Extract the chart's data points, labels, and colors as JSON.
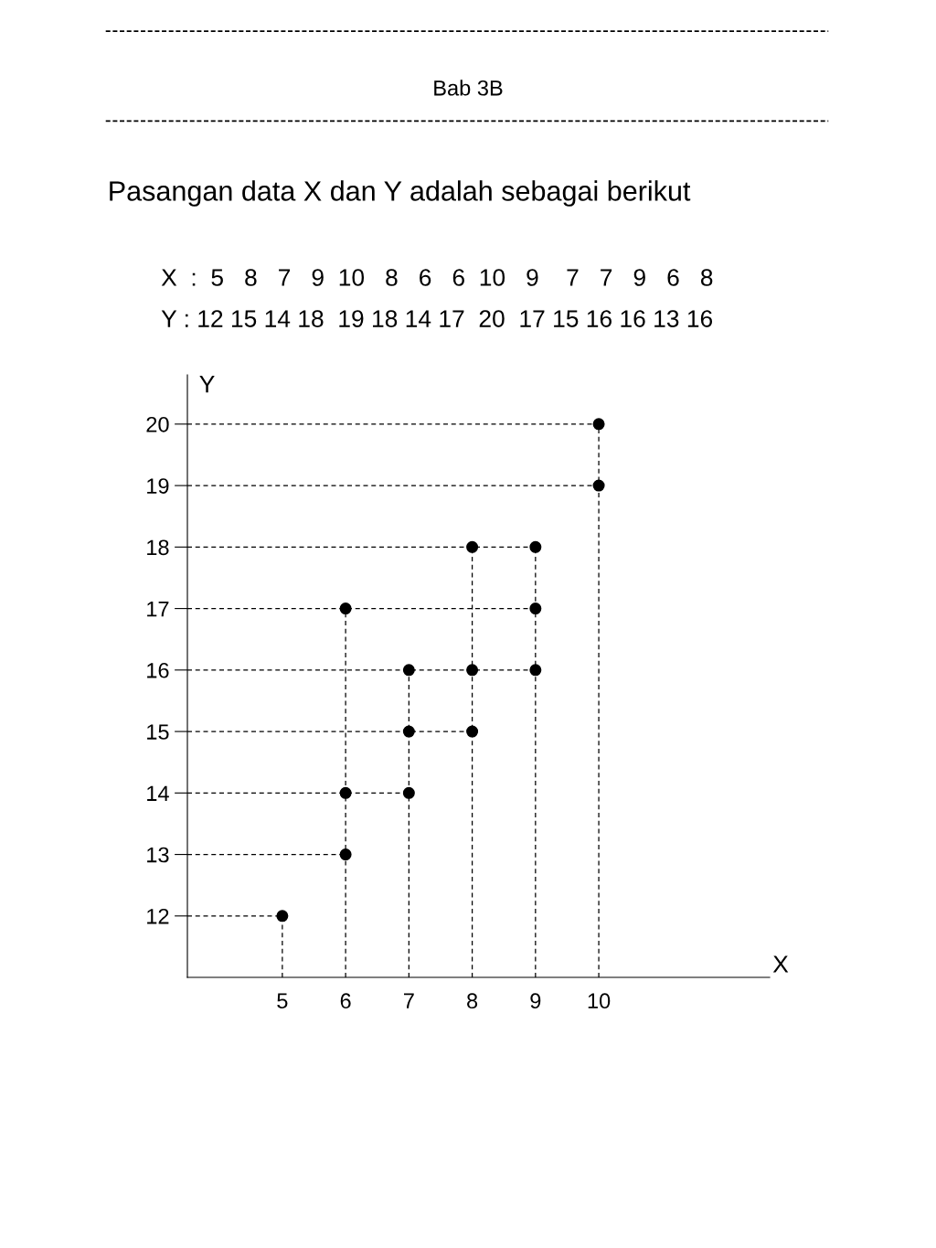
{
  "chart_data": {
    "type": "scatter",
    "title": "Pasangan data X dan Y adalah sebagai berikut",
    "subtitle": "Bab 3B",
    "annotations": [
      "X  :  5   8   7   9  10   8   6   6  10   9    7   7   9   6   8",
      "Y : 12 15 14 18  19 18 14 17  20  17 15 16 16 13 16"
    ],
    "xlabel": "X",
    "ylabel": "Y",
    "series": [
      {
        "color": "#000000",
        "x": [
          5,
          8,
          7,
          9,
          10,
          8,
          6,
          6,
          10,
          9,
          7,
          7,
          9,
          6,
          8
        ],
        "values": [
          12,
          15,
          14,
          18,
          19,
          18,
          14,
          17,
          20,
          17,
          15,
          16,
          16,
          13,
          16
        ]
      },
      {
        "type": "line",
        "line_style": "dashed",
        "color": "#000000",
        "marker": "none",
        "x": [
          3.5,
          5
        ],
        "values": [
          12,
          12
        ]
      },
      {
        "type": "line",
        "line_style": "dashed",
        "color": "#000000",
        "marker": "none",
        "x": [
          3.5,
          6
        ],
        "values": [
          13,
          13
        ]
      },
      {
        "type": "line",
        "line_style": "dashed",
        "color": "#000000",
        "marker": "none",
        "x": [
          3.5,
          7
        ],
        "values": [
          14,
          14
        ]
      },
      {
        "type": "line",
        "line_style": "dashed",
        "color": "#000000",
        "marker": "none",
        "x": [
          3.5,
          8
        ],
        "values": [
          15,
          15
        ]
      },
      {
        "type": "line",
        "line_style": "dashed",
        "color": "#000000",
        "marker": "none",
        "x": [
          3.5,
          9
        ],
        "values": [
          16,
          16
        ]
      },
      {
        "type": "line",
        "line_style": "dashed",
        "color": "#000000",
        "marker": "none",
        "x": [
          3.5,
          9
        ],
        "values": [
          17,
          17
        ]
      },
      {
        "type": "line",
        "line_style": "dashed",
        "color": "#000000",
        "marker": "none",
        "x": [
          3.5,
          9
        ],
        "values": [
          18,
          18
        ]
      },
      {
        "type": "line",
        "line_style": "dashed",
        "color": "#000000",
        "marker": "none",
        "x": [
          3.5,
          10
        ],
        "values": [
          19,
          19
        ]
      },
      {
        "type": "line",
        "line_style": "dashed",
        "color": "#000000",
        "marker": "none",
        "x": [
          3.5,
          10
        ],
        "values": [
          20,
          20
        ]
      },
      {
        "type": "line",
        "line_style": "dashed",
        "color": "#000000",
        "marker": "none",
        "x": [
          5,
          5
        ],
        "values": [
          11,
          12
        ]
      },
      {
        "type": "line",
        "line_style": "dashed",
        "color": "#000000",
        "marker": "none",
        "x": [
          6,
          6
        ],
        "values": [
          11,
          17
        ]
      },
      {
        "type": "line",
        "line_style": "dashed",
        "color": "#000000",
        "marker": "none",
        "x": [
          7,
          7
        ],
        "values": [
          11,
          16
        ]
      },
      {
        "type": "line",
        "line_style": "dashed",
        "color": "#000000",
        "marker": "none",
        "x": [
          8,
          8
        ],
        "values": [
          11,
          18
        ]
      },
      {
        "type": "line",
        "line_style": "dashed",
        "color": "#000000",
        "marker": "none",
        "x": [
          9,
          9
        ],
        "values": [
          11,
          18
        ]
      },
      {
        "type": "line",
        "line_style": "dashed",
        "color": "#000000",
        "marker": "none",
        "x": [
          10,
          10
        ],
        "values": [
          11,
          20
        ]
      }
    ],
    "xlim": [
      3.5,
      12.7
    ],
    "ylim": [
      11,
      20.8
    ],
    "xticks": [
      5,
      6,
      7,
      8,
      9,
      10
    ],
    "yticks": [
      12,
      13,
      14,
      15,
      16,
      17,
      18,
      19,
      20
    ],
    "marker": "circle",
    "grid": false
  }
}
